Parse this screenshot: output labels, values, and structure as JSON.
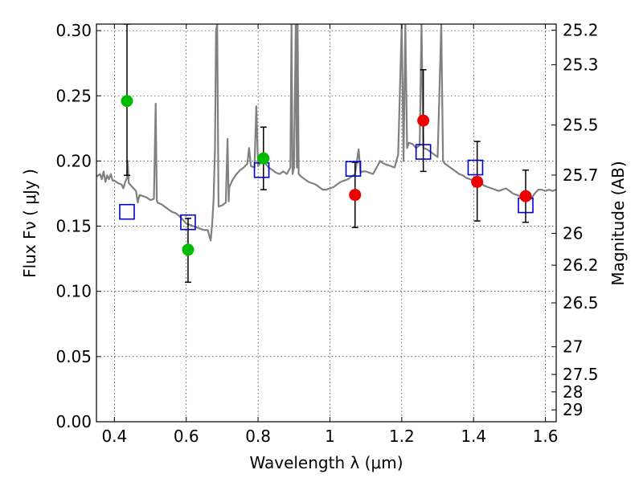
{
  "chart_data": {
    "type": "scatter",
    "xlabel": "Wavelength  λ (μm)",
    "ylabel": "Flux  Fν  ( μJy )",
    "y2label": "Magnitude (AB)",
    "xlim": [
      0.35,
      1.63
    ],
    "ylim": [
      0.0,
      0.305
    ],
    "grid": true,
    "x_ticks": [
      {
        "value": 0.4,
        "label": "0.4"
      },
      {
        "value": 0.6,
        "label": "0.6"
      },
      {
        "value": 0.8,
        "label": "0.8"
      },
      {
        "value": 1.0,
        "label": "1"
      },
      {
        "value": 1.2,
        "label": "1.2"
      },
      {
        "value": 1.4,
        "label": "1.4"
      },
      {
        "value": 1.6,
        "label": "1.6"
      }
    ],
    "y_ticks": [
      {
        "value": 0.0,
        "label": "0.00"
      },
      {
        "value": 0.05,
        "label": "0.05"
      },
      {
        "value": 0.1,
        "label": "0.10"
      },
      {
        "value": 0.15,
        "label": "0.15"
      },
      {
        "value": 0.2,
        "label": "0.20"
      },
      {
        "value": 0.25,
        "label": "0.25"
      },
      {
        "value": 0.3,
        "label": "0.30"
      }
    ],
    "y2_ticks": [
      {
        "flux": 0.3003,
        "label": "25.2"
      },
      {
        "flux": 0.2738,
        "label": "25.3"
      },
      {
        "flux": 0.2276,
        "label": "25.5"
      },
      {
        "flux": 0.1892,
        "label": "25.7"
      },
      {
        "flux": 0.1445,
        "label": "26"
      },
      {
        "flux": 0.1201,
        "label": "26.2"
      },
      {
        "flux": 0.0912,
        "label": "26.5"
      },
      {
        "flux": 0.0575,
        "label": "27"
      },
      {
        "flux": 0.0363,
        "label": "27.5"
      },
      {
        "flux": 0.0229,
        "label": "28"
      },
      {
        "flux": 0.0091,
        "label": "29"
      }
    ],
    "series": [
      {
        "kind": "model-spectrum",
        "color": "#808080",
        "points": [
          [
            0.35,
            0.188
          ],
          [
            0.36,
            0.19
          ],
          [
            0.365,
            0.186
          ],
          [
            0.37,
            0.192
          ],
          [
            0.375,
            0.184
          ],
          [
            0.38,
            0.189
          ],
          [
            0.385,
            0.186
          ],
          [
            0.39,
            0.19
          ],
          [
            0.395,
            0.185
          ],
          [
            0.4,
            0.185
          ],
          [
            0.41,
            0.183
          ],
          [
            0.42,
            0.182
          ],
          [
            0.425,
            0.179
          ],
          [
            0.43,
            0.184
          ],
          [
            0.435,
            0.187
          ],
          [
            0.437,
            0.2
          ],
          [
            0.44,
            0.183
          ],
          [
            0.45,
            0.18
          ],
          [
            0.46,
            0.177
          ],
          [
            0.465,
            0.168
          ],
          [
            0.47,
            0.174
          ],
          [
            0.48,
            0.173
          ],
          [
            0.49,
            0.172
          ],
          [
            0.5,
            0.17
          ],
          [
            0.51,
            0.171
          ],
          [
            0.515,
            0.244
          ],
          [
            0.518,
            0.17
          ],
          [
            0.52,
            0.168
          ],
          [
            0.53,
            0.167
          ],
          [
            0.54,
            0.165
          ],
          [
            0.55,
            0.163
          ],
          [
            0.56,
            0.161
          ],
          [
            0.57,
            0.16
          ],
          [
            0.58,
            0.158
          ],
          [
            0.59,
            0.155
          ],
          [
            0.6,
            0.152
          ],
          [
            0.61,
            0.151
          ],
          [
            0.62,
            0.15
          ],
          [
            0.63,
            0.149
          ],
          [
            0.64,
            0.148
          ],
          [
            0.65,
            0.147
          ],
          [
            0.66,
            0.147
          ],
          [
            0.668,
            0.139
          ],
          [
            0.672,
            0.151
          ],
          [
            0.676,
            0.17
          ],
          [
            0.68,
            0.21
          ],
          [
            0.683,
            0.3
          ],
          [
            0.686,
            0.305
          ],
          [
            0.69,
            0.165
          ],
          [
            0.7,
            0.166
          ],
          [
            0.71,
            0.168
          ],
          [
            0.715,
            0.217
          ],
          [
            0.718,
            0.169
          ],
          [
            0.72,
            0.18
          ],
          [
            0.73,
            0.186
          ],
          [
            0.74,
            0.19
          ],
          [
            0.75,
            0.193
          ],
          [
            0.76,
            0.195
          ],
          [
            0.77,
            0.198
          ],
          [
            0.775,
            0.21
          ],
          [
            0.78,
            0.196
          ],
          [
            0.79,
            0.195
          ],
          [
            0.795,
            0.242
          ],
          [
            0.8,
            0.196
          ],
          [
            0.81,
            0.2
          ],
          [
            0.82,
            0.198
          ],
          [
            0.83,
            0.195
          ],
          [
            0.84,
            0.193
          ],
          [
            0.85,
            0.191
          ],
          [
            0.86,
            0.19
          ],
          [
            0.87,
            0.192
          ],
          [
            0.88,
            0.19
          ],
          [
            0.89,
            0.195
          ],
          [
            0.893,
            0.305
          ],
          [
            0.896,
            0.19
          ],
          [
            0.9,
            0.195
          ],
          [
            0.905,
            0.305
          ],
          [
            0.908,
            0.195
          ],
          [
            0.91,
            0.305
          ],
          [
            0.913,
            0.19
          ],
          [
            0.92,
            0.188
          ],
          [
            0.93,
            0.186
          ],
          [
            0.94,
            0.184
          ],
          [
            0.95,
            0.183
          ],
          [
            0.96,
            0.182
          ],
          [
            0.97,
            0.18
          ],
          [
            0.98,
            0.178
          ],
          [
            0.99,
            0.178
          ],
          [
            1.0,
            0.179
          ],
          [
            1.01,
            0.18
          ],
          [
            1.02,
            0.182
          ],
          [
            1.03,
            0.184
          ],
          [
            1.04,
            0.185
          ],
          [
            1.05,
            0.186
          ],
          [
            1.06,
            0.188
          ],
          [
            1.07,
            0.19
          ],
          [
            1.08,
            0.209
          ],
          [
            1.085,
            0.191
          ],
          [
            1.09,
            0.192
          ],
          [
            1.1,
            0.192
          ],
          [
            1.11,
            0.191
          ],
          [
            1.12,
            0.19
          ],
          [
            1.13,
            0.195
          ],
          [
            1.14,
            0.2
          ],
          [
            1.15,
            0.198
          ],
          [
            1.16,
            0.197
          ],
          [
            1.17,
            0.196
          ],
          [
            1.18,
            0.195
          ],
          [
            1.19,
            0.205
          ],
          [
            1.2,
            0.305
          ],
          [
            1.205,
            0.2
          ],
          [
            1.21,
            0.305
          ],
          [
            1.215,
            0.21
          ],
          [
            1.22,
            0.214
          ],
          [
            1.23,
            0.213
          ],
          [
            1.24,
            0.21
          ],
          [
            1.25,
            0.212
          ],
          [
            1.255,
            0.305
          ],
          [
            1.26,
            0.21
          ],
          [
            1.27,
            0.209
          ],
          [
            1.28,
            0.207
          ],
          [
            1.29,
            0.205
          ],
          [
            1.3,
            0.203
          ],
          [
            1.31,
            0.305
          ],
          [
            1.315,
            0.2
          ],
          [
            1.32,
            0.198
          ],
          [
            1.33,
            0.196
          ],
          [
            1.34,
            0.194
          ],
          [
            1.35,
            0.192
          ],
          [
            1.36,
            0.19
          ],
          [
            1.37,
            0.189
          ],
          [
            1.38,
            0.187
          ],
          [
            1.39,
            0.186
          ],
          [
            1.4,
            0.185
          ],
          [
            1.41,
            0.184
          ],
          [
            1.42,
            0.183
          ],
          [
            1.43,
            0.181
          ],
          [
            1.44,
            0.18
          ],
          [
            1.45,
            0.179
          ],
          [
            1.46,
            0.178
          ],
          [
            1.47,
            0.177
          ],
          [
            1.48,
            0.178
          ],
          [
            1.49,
            0.179
          ],
          [
            1.5,
            0.177
          ],
          [
            1.51,
            0.175
          ],
          [
            1.52,
            0.174
          ],
          [
            1.53,
            0.173
          ],
          [
            1.54,
            0.172
          ],
          [
            1.55,
            0.172
          ],
          [
            1.56,
            0.171
          ],
          [
            1.57,
            0.175
          ],
          [
            1.58,
            0.178
          ],
          [
            1.59,
            0.178
          ],
          [
            1.6,
            0.177
          ],
          [
            1.61,
            0.178
          ],
          [
            1.62,
            0.177
          ],
          [
            1.63,
            0.178
          ]
        ]
      },
      {
        "kind": "model-photometry",
        "marker": "open-square",
        "color": "#0000cc",
        "points": [
          [
            0.435,
            0.161
          ],
          [
            0.605,
            0.153
          ],
          [
            0.81,
            0.193
          ],
          [
            1.065,
            0.194
          ],
          [
            1.26,
            0.207
          ],
          [
            1.405,
            0.195
          ],
          [
            1.545,
            0.166
          ]
        ]
      },
      {
        "kind": "observed",
        "marker": "filled-circle",
        "color": "#00bb00",
        "points": [
          {
            "x": 0.435,
            "y": 0.246,
            "ylo": 0.189,
            "yhi": 0.305
          },
          {
            "x": 0.605,
            "y": 0.132,
            "ylo": 0.107,
            "yhi": 0.156
          },
          {
            "x": 0.815,
            "y": 0.202,
            "ylo": 0.178,
            "yhi": 0.226
          }
        ]
      },
      {
        "kind": "observed",
        "marker": "filled-circle",
        "color": "#ee0000",
        "points": [
          {
            "x": 1.07,
            "y": 0.174,
            "ylo": 0.149,
            "yhi": 0.199
          },
          {
            "x": 1.26,
            "y": 0.231,
            "ylo": 0.192,
            "yhi": 0.27
          },
          {
            "x": 1.41,
            "y": 0.184,
            "ylo": 0.154,
            "yhi": 0.215
          },
          {
            "x": 1.545,
            "y": 0.173,
            "ylo": 0.153,
            "yhi": 0.193
          }
        ]
      }
    ]
  }
}
